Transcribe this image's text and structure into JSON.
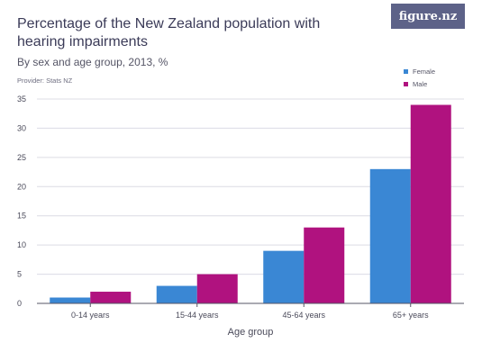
{
  "header": {
    "title": "Percentage of the New Zealand population with hearing impairments",
    "subtitle": "By sex and age group, 2013, %",
    "provider": "Provider: Stats NZ",
    "logo": "figure.nz"
  },
  "colors": {
    "female": "#3a87d4",
    "male": "#b0127f",
    "grid": "#dcdce4",
    "axis": "#555566"
  },
  "chart_data": {
    "type": "bar",
    "categories": [
      "0-14 years",
      "15-44 years",
      "45-64 years",
      "65+ years"
    ],
    "series": [
      {
        "name": "Female",
        "values": [
          1,
          3,
          9,
          23
        ]
      },
      {
        "name": "Male",
        "values": [
          2,
          5,
          13,
          34
        ]
      }
    ],
    "xlabel": "Age group",
    "ylabel": "",
    "ylim": [
      0,
      35
    ],
    "yticks": [
      0,
      5,
      10,
      15,
      20,
      25,
      30,
      35
    ],
    "grid": true,
    "legend": "top-right"
  }
}
